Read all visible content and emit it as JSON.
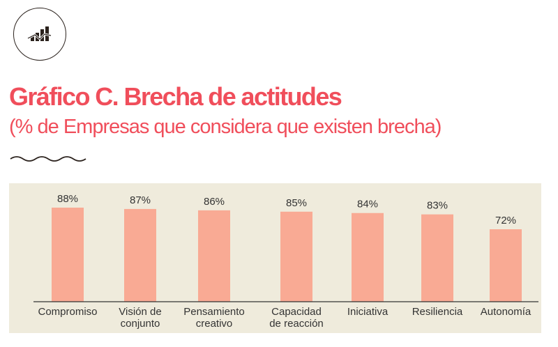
{
  "header": {
    "icon": "chart-bar-line-icon",
    "title": "Gráfico C. Brecha de actitudes",
    "subtitle": "(% de Empresas que considera que  existen brecha)"
  },
  "colors": {
    "title": "#f04e5b",
    "bar": "#f9aa94",
    "panel": "#efebdc",
    "text": "#333333"
  },
  "chart_data": {
    "type": "bar",
    "title": "Gráfico C. Brecha de actitudes",
    "subtitle": "(% de Empresas que considera que  existen brecha)",
    "categories": [
      [
        "Compromiso"
      ],
      [
        "Visión de",
        "conjunto"
      ],
      [
        "Pensamiento",
        "creativo"
      ],
      [
        "Capacidad",
        "de reacción"
      ],
      [
        "Iniciativa"
      ],
      [
        "Resiliencia"
      ],
      [
        "Autonomía"
      ]
    ],
    "values": [
      88,
      87,
      86,
      85,
      84,
      83,
      72
    ],
    "value_labels": [
      "88%",
      "87%",
      "86%",
      "85%",
      "84%",
      "83%",
      "72%"
    ],
    "unit": "%",
    "xlabel": "",
    "ylabel": "",
    "grid": false
  }
}
